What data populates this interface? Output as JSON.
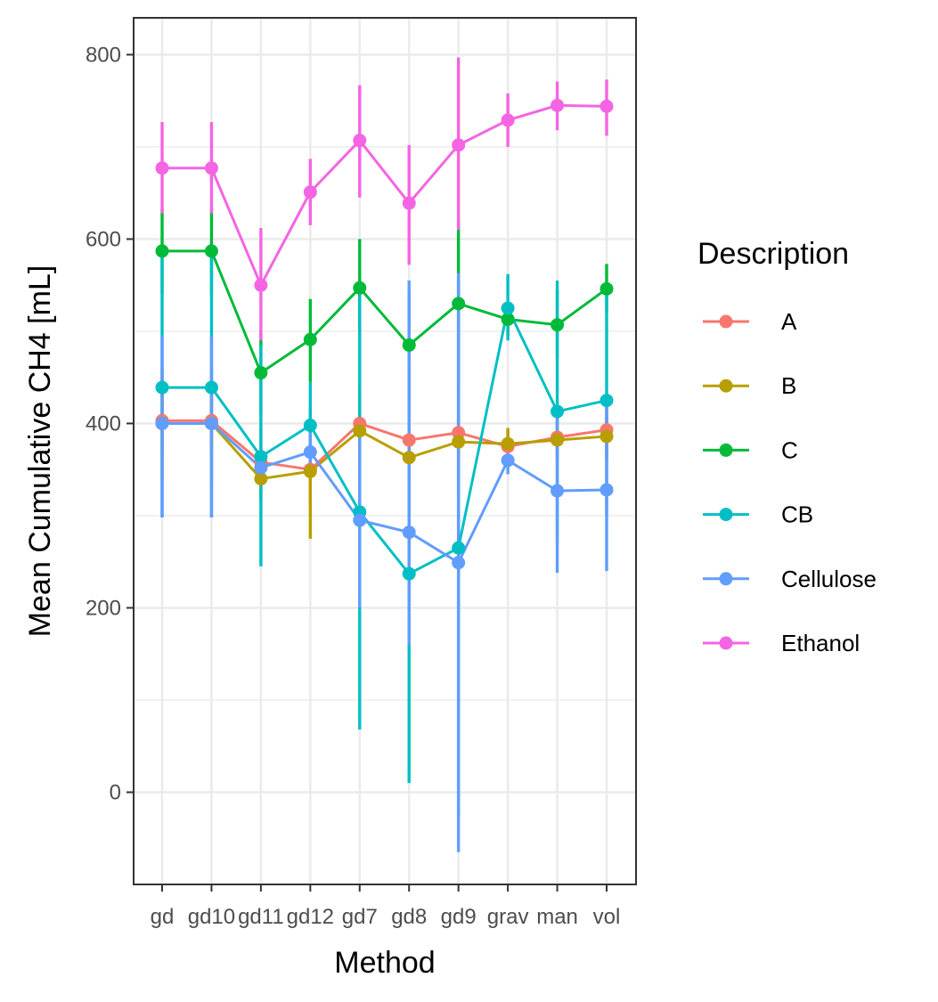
{
  "chart_data": {
    "type": "line",
    "xlabel": "Method",
    "ylabel": "Mean Cumulative CH4 [mL]",
    "categories": [
      "gd",
      "gd10",
      "gd11",
      "gd12",
      "gd7",
      "gd8",
      "gd9",
      "grav",
      "man",
      "vol"
    ],
    "ylim": [
      -100,
      840
    ],
    "yticks": [
      0,
      200,
      400,
      600,
      800
    ],
    "grid": true,
    "legend": {
      "title": "Description",
      "position": "right"
    },
    "series": [
      {
        "name": "A",
        "color": "#F8766D",
        "values": [
          403,
          403,
          358,
          350,
          400,
          382,
          390,
          375,
          385,
          393
        ],
        "lower": [
          370,
          370,
          320,
          310,
          350,
          355,
          340,
          355,
          360,
          360
        ],
        "upper": [
          440,
          440,
          395,
          395,
          440,
          405,
          440,
          395,
          405,
          425
        ]
      },
      {
        "name": "B",
        "color": "#B79F00",
        "values": [
          400,
          400,
          340,
          348,
          392,
          363,
          380,
          378,
          382,
          386
        ],
        "lower": [
          338,
          338,
          315,
          275,
          345,
          335,
          320,
          360,
          360,
          360
        ],
        "upper": [
          460,
          460,
          370,
          420,
          440,
          395,
          440,
          395,
          405,
          410
        ]
      },
      {
        "name": "C",
        "color": "#00BA38",
        "values": [
          587,
          587,
          455,
          491,
          547,
          485,
          530,
          513,
          507,
          546
        ],
        "lower": [
          540,
          540,
          410,
          445,
          495,
          425,
          440,
          495,
          470,
          520
        ],
        "upper": [
          633,
          633,
          500,
          535,
          600,
          545,
          620,
          530,
          545,
          573
        ]
      },
      {
        "name": "CB",
        "color": "#00BFC4",
        "values": [
          439,
          439,
          364,
          398,
          304,
          237,
          265,
          525,
          413,
          425
        ],
        "lower": [
          298,
          298,
          245,
          350,
          68,
          10,
          -25,
          490,
          270,
          300
        ],
        "upper": [
          580,
          580,
          485,
          445,
          540,
          465,
          555,
          562,
          555,
          550
        ]
      },
      {
        "name": "Cellulose",
        "color": "#619CFF",
        "values": [
          400,
          400,
          352,
          369,
          295,
          282,
          249,
          360,
          327,
          328
        ],
        "lower": [
          298,
          298,
          340,
          350,
          200,
          160,
          -65,
          345,
          238,
          240
        ],
        "upper": [
          495,
          495,
          365,
          390,
          390,
          555,
          563,
          375,
          415,
          420
        ]
      },
      {
        "name": "Ethanol",
        "color": "#F564E3",
        "values": [
          677,
          677,
          550,
          651,
          707,
          639,
          702,
          729,
          745,
          744
        ],
        "lower": [
          628,
          628,
          490,
          615,
          645,
          572,
          610,
          700,
          718,
          712
        ],
        "upper": [
          727,
          727,
          612,
          687,
          767,
          702,
          797,
          758,
          771,
          773
        ]
      }
    ]
  }
}
